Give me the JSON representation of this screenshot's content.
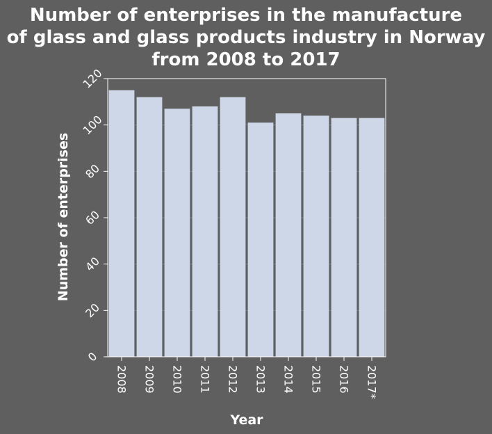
{
  "chart_data": {
    "type": "bar",
    "title_lines": [
      "Number of enterprises in the manufacture",
      "of glass and glass products industry in Norway",
      "from 2008 to 2017"
    ],
    "xlabel": "Year",
    "ylabel": "Number of enterprises",
    "categories": [
      "2008",
      "2009",
      "2010",
      "2011",
      "2012",
      "2013",
      "2014",
      "2015",
      "2016",
      "2017*"
    ],
    "values": [
      115,
      112,
      107,
      108,
      112,
      101,
      105,
      104,
      103,
      103
    ],
    "ylim": [
      0,
      120
    ],
    "yticks": [
      "0",
      "20",
      "40",
      "60",
      "80",
      "100",
      "120"
    ],
    "grid": true,
    "bar_color": "#cdd7e8",
    "background_color": "#5f5f5f"
  }
}
